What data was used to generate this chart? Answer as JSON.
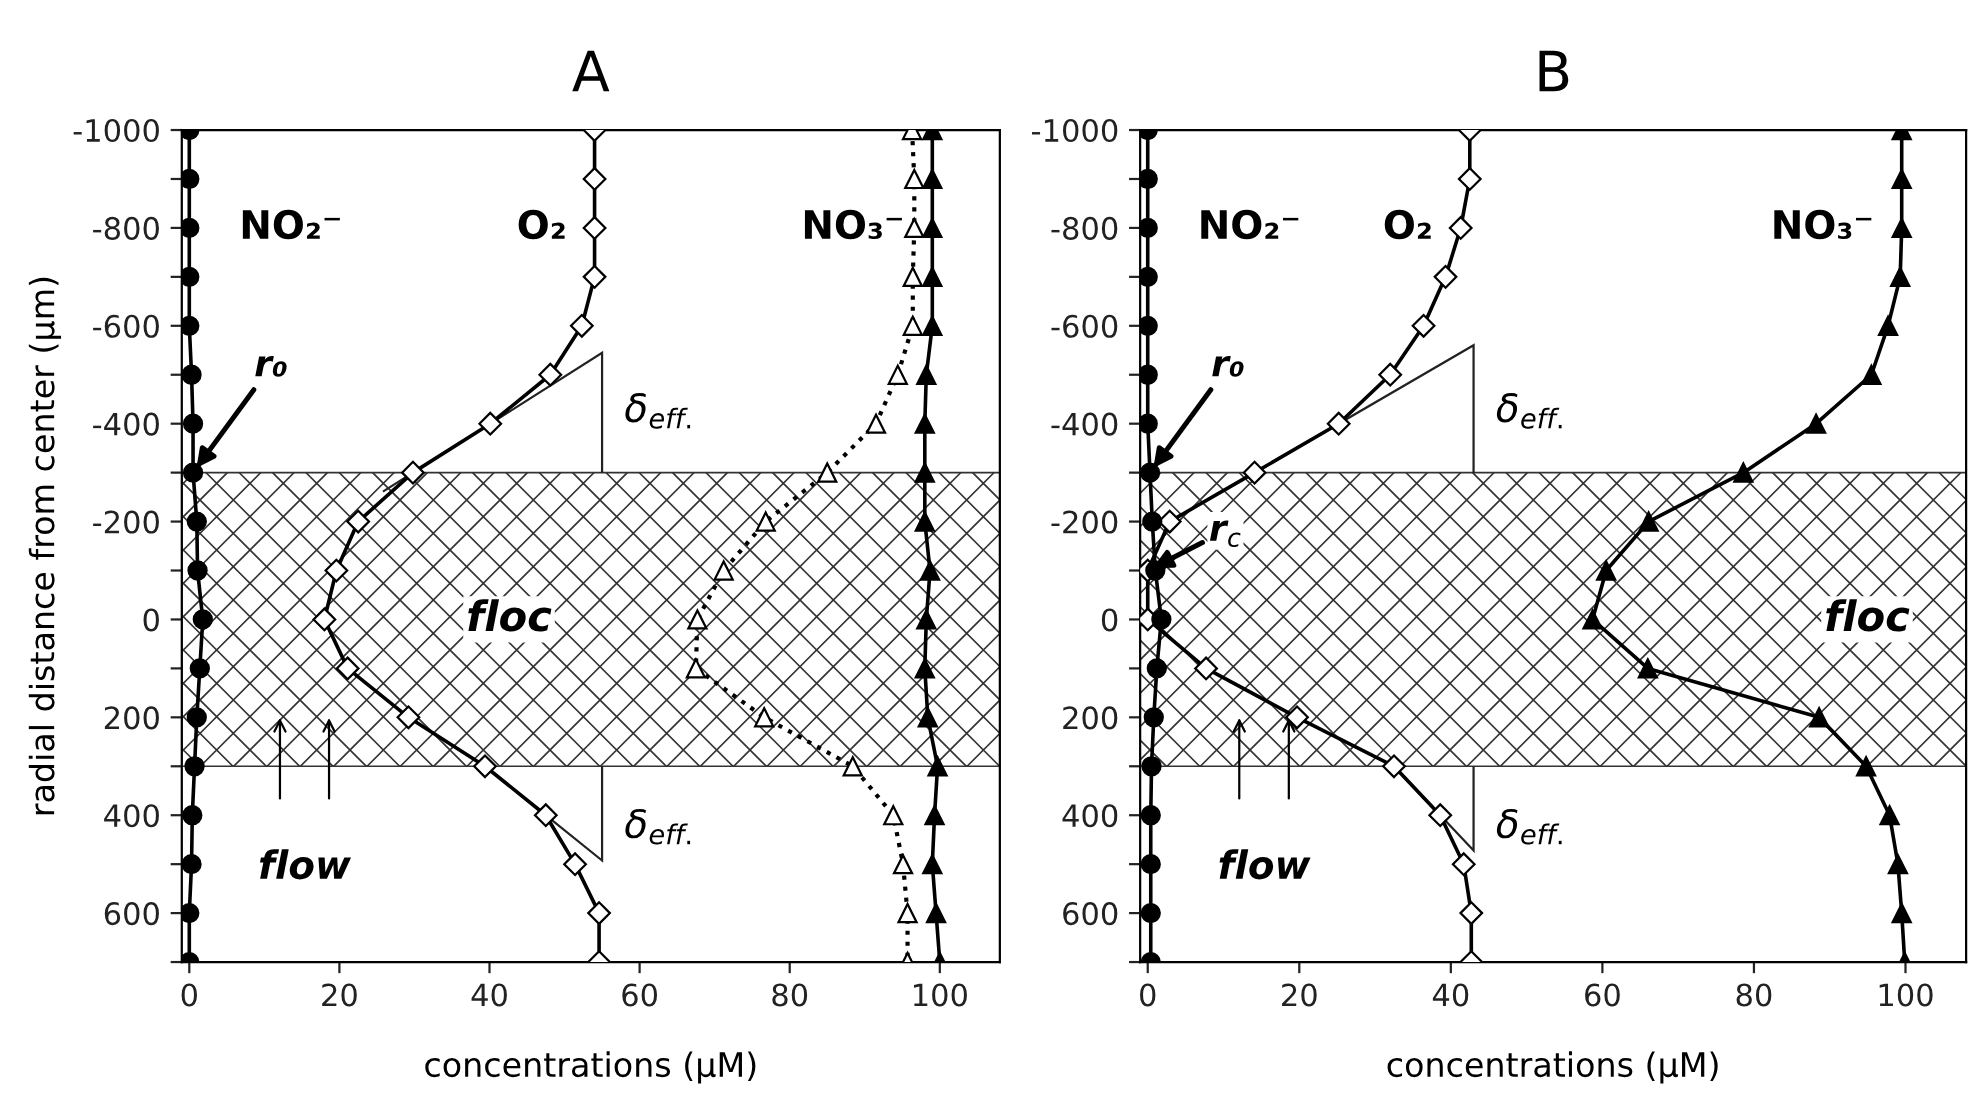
{
  "chart_data": [
    {
      "type": "line",
      "title": "A",
      "xlabel": "concentrations (μM)",
      "ylabel": "radial distance from center (μm)",
      "x": [
        -1000,
        -900,
        -800,
        -700,
        -600,
        -500,
        -400,
        -300,
        -200,
        -100,
        0,
        100,
        200,
        300,
        400,
        500,
        600,
        700
      ],
      "orientation": "horizontal",
      "series": [
        {
          "name": "NO₂⁻",
          "color": "#000000",
          "marker": "circle",
          "line_style": "solid",
          "values": [
            0,
            0,
            0,
            0,
            0,
            0.3,
            0.5,
            0.5,
            1,
            1.1,
            1.8,
            1.4,
            1,
            0.7,
            0.4,
            0.3,
            0,
            0
          ]
        },
        {
          "name": "O₂",
          "color": "#ffffff",
          "marker": "diamond",
          "line_style": "solid",
          "values": [
            54,
            54,
            54,
            54,
            52.3,
            48.1,
            40.1,
            29.8,
            22.5,
            19.6,
            18,
            21.1,
            29.2,
            39.4,
            47.5,
            51.4,
            54.6,
            54.6
          ]
        },
        {
          "color": "#ffffff",
          "marker": "triangle",
          "line_style": "dotted",
          "values": [
            96.3,
            96.6,
            96.6,
            96.4,
            96.4,
            94.4,
            91.5,
            85,
            76.8,
            71.2,
            67.7,
            67.5,
            76.6,
            88.4,
            93.8,
            95.1,
            95.7,
            95.7
          ]
        },
        {
          "name": "NO₃⁻",
          "color": "#000000",
          "marker": "triangle",
          "line_style": "solid",
          "values": [
            99,
            99,
            99,
            99,
            99,
            98.2,
            98,
            98,
            98,
            98.7,
            98.2,
            98,
            98.4,
            99.7,
            99.3,
            99,
            99.5,
            100
          ]
        }
      ],
      "xlim": [
        -1,
        108
      ],
      "xticks": [
        0,
        20,
        40,
        60,
        80,
        100
      ],
      "ylim": [
        700,
        -1000
      ],
      "yticks": [
        -1000,
        {
          "value": -900,
          "label": null
        },
        -800,
        {
          "value": -700,
          "label": null
        },
        -600,
        {
          "value": -500,
          "label": null
        },
        -400,
        {
          "value": -300,
          "label": null
        },
        -200,
        {
          "value": -100,
          "label": null
        },
        0,
        {
          "value": 100,
          "label": null
        },
        200,
        {
          "value": 300,
          "label": null
        },
        400,
        {
          "value": 500,
          "label": null
        },
        600,
        {
          "value": 700,
          "label": null
        }
      ],
      "bands": [
        {
          "axis": "y",
          "from": -300,
          "to": 300,
          "label": "floc"
        }
      ],
      "annotations": [
        {
          "text": "r₀",
          "x": 0.5,
          "y": -300
        },
        {
          "text": "δ$_{eff.}$",
          "x": 55,
          "y": -300
        },
        {
          "text": "δ$_{eff.}$",
          "x": 55,
          "y": 300
        },
        "flow"
      ],
      "grid": false
    },
    {
      "type": "line",
      "title": "B",
      "xlabel": "concentrations (μM)",
      "x": [
        -1000,
        -900,
        -800,
        -700,
        -600,
        -500,
        -400,
        -300,
        -200,
        -100,
        0,
        100,
        200,
        300,
        400,
        500,
        600,
        700
      ],
      "orientation": "horizontal",
      "series": [
        {
          "name": "NO₂⁻",
          "color": "#000000",
          "marker": "circle",
          "line_style": "solid",
          "values": [
            0,
            0,
            0,
            0,
            0,
            0,
            0,
            0.3,
            0.6,
            1,
            1.8,
            1.2,
            0.8,
            0.5,
            0.4,
            0.4,
            0.4,
            0.4
          ]
        },
        {
          "name": "O₂",
          "color": "#ffffff",
          "marker": "diamond",
          "line_style": "solid",
          "values": [
            42.5,
            42.5,
            41.3,
            39.3,
            36.4,
            32,
            25.2,
            14.1,
            2.9,
            0,
            0,
            7.7,
            19.7,
            32.5,
            38.6,
            41.7,
            42.7,
            42.7
          ]
        },
        {
          "name": "NO₃⁻",
          "color": "#000000",
          "marker": "triangle",
          "line_style": "solid",
          "values": [
            99.5,
            99.5,
            99.5,
            99.3,
            97.7,
            95.5,
            88.2,
            78.6,
            66.1,
            60.5,
            58.7,
            66,
            88.6,
            94.8,
            97.9,
            99,
            99.5,
            99.9
          ]
        }
      ],
      "xlim": [
        -1,
        108
      ],
      "xticks": [
        0,
        20,
        40,
        60,
        80,
        100
      ],
      "ylim": [
        700,
        -1000
      ],
      "yticks": [
        -1000,
        {
          "value": -900,
          "label": null
        },
        -800,
        {
          "value": -700,
          "label": null
        },
        -600,
        {
          "value": -500,
          "label": null
        },
        -400,
        {
          "value": -300,
          "label": null
        },
        -200,
        {
          "value": -100,
          "label": null
        },
        0,
        {
          "value": 100,
          "label": null
        },
        200,
        {
          "value": 300,
          "label": null
        },
        400,
        {
          "value": 500,
          "label": null
        },
        600,
        {
          "value": 700,
          "label": null
        }
      ],
      "bands": [
        {
          "axis": "y",
          "from": -300,
          "to": 300,
          "label": "floc"
        }
      ],
      "annotations": [
        {
          "text": "r₀",
          "x": 0.3,
          "y": -300
        },
        {
          "text": "r$_{c}$",
          "x": 0,
          "y": -100
        },
        {
          "text": "δ$_{eff.}$",
          "x": 43,
          "y": -300
        },
        {
          "text": "δ$_{eff.}$",
          "x": 43,
          "y": 300
        },
        "flow"
      ],
      "grid": false
    }
  ]
}
